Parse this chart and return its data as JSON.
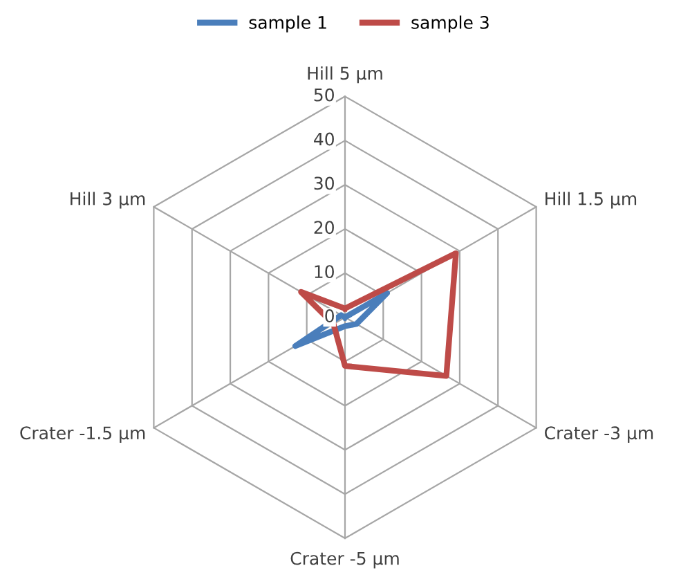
{
  "chart_data": {
    "type": "radar",
    "categories": [
      "Hill 5 µm",
      "Hill 1.5 µm",
      "Crater -3 µm",
      "Crater -5 µm",
      "Crater -1.5 µm",
      "Hill 3 µm"
    ],
    "series": [
      {
        "name": "sample 1",
        "color": "#4a7ebb",
        "values": [
          0,
          11,
          3,
          2,
          13,
          1
        ]
      },
      {
        "name": "sample 3",
        "color": "#be4b48",
        "values": [
          2,
          29,
          26.5,
          11,
          3,
          11.5
        ]
      }
    ],
    "ylim": [
      0,
      50
    ],
    "yticks": [
      0,
      10,
      20,
      30,
      40,
      50
    ],
    "grid": true,
    "legend": "top",
    "marker": "none",
    "line_style": "solid"
  }
}
